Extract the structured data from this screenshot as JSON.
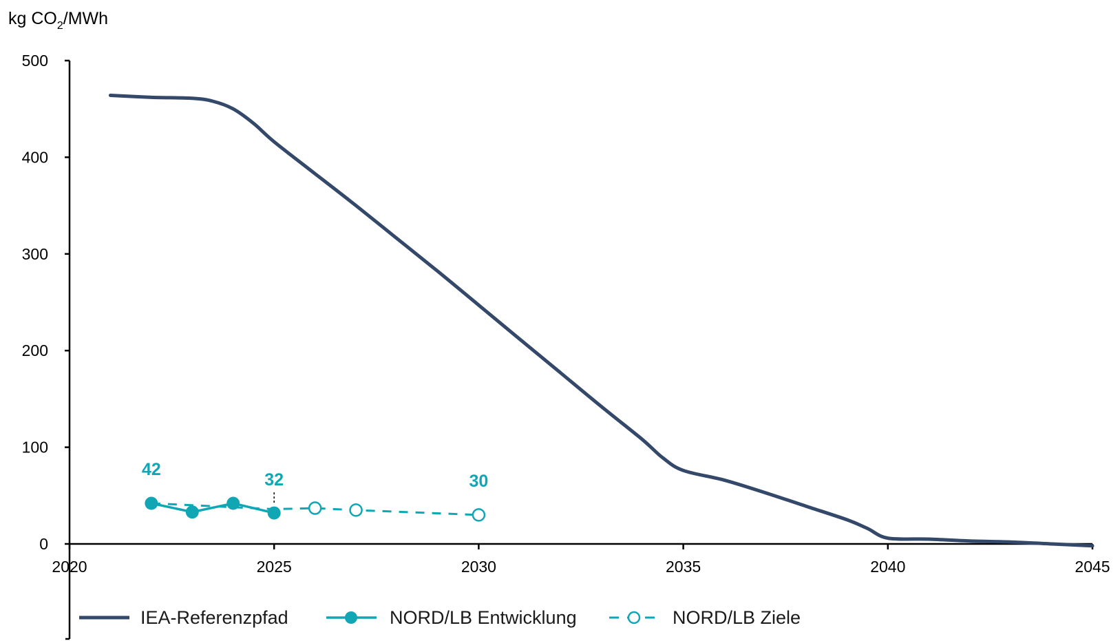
{
  "chart_data": {
    "type": "line",
    "unit_label": {
      "prefix": "kg CO",
      "subscript": "2",
      "suffix": "/MWh"
    },
    "xlim": [
      2020,
      2045
    ],
    "ylim": [
      0,
      500
    ],
    "x_ticks": [
      "2020",
      "2025",
      "2030",
      "2035",
      "2040",
      "2045"
    ],
    "y_ticks": [
      "0",
      "100",
      "200",
      "300",
      "400",
      "500"
    ],
    "grid": false,
    "legend_position": "bottom",
    "colors": {
      "iea": "#34486a",
      "nordlb": "#10a6b4"
    },
    "series": [
      {
        "name": "IEA-Referenzpfad",
        "style": "solid",
        "points": [
          [
            2021,
            464
          ],
          [
            2022,
            462
          ],
          [
            2023,
            461
          ],
          [
            2023.5,
            458
          ],
          [
            2024,
            450
          ],
          [
            2024.5,
            435
          ],
          [
            2025,
            416
          ],
          [
            2026,
            383
          ],
          [
            2027,
            350
          ],
          [
            2028,
            316
          ],
          [
            2029,
            282
          ],
          [
            2030,
            247
          ],
          [
            2031,
            212
          ],
          [
            2032,
            177
          ],
          [
            2033,
            142
          ],
          [
            2034,
            108
          ],
          [
            2034.5,
            89
          ],
          [
            2035,
            76
          ],
          [
            2036,
            66
          ],
          [
            2037,
            53
          ],
          [
            2038,
            39
          ],
          [
            2039,
            25
          ],
          [
            2039.5,
            16
          ],
          [
            2040,
            6
          ],
          [
            2041,
            5
          ],
          [
            2042,
            3
          ],
          [
            2043,
            2
          ],
          [
            2044,
            0
          ],
          [
            2045,
            -2
          ]
        ]
      },
      {
        "name": "NORD/LB Entwicklung",
        "style": "solid-marker",
        "points": [
          [
            2022,
            42
          ],
          [
            2023,
            33
          ],
          [
            2024,
            42
          ],
          [
            2025,
            32
          ]
        ]
      },
      {
        "name": "NORD/LB Ziele",
        "style": "dashed-open-marker",
        "points": [
          [
            2022,
            42
          ],
          [
            2025,
            36
          ],
          [
            2026,
            37
          ],
          [
            2027,
            35
          ],
          [
            2030,
            30
          ]
        ],
        "marker_points": [
          [
            2026,
            37
          ],
          [
            2027,
            35
          ],
          [
            2030,
            30
          ]
        ]
      }
    ],
    "data_labels": [
      {
        "x": 2022,
        "text": "42"
      },
      {
        "x": 2025,
        "text": "32"
      },
      {
        "x": 2030,
        "text": "30"
      }
    ]
  }
}
